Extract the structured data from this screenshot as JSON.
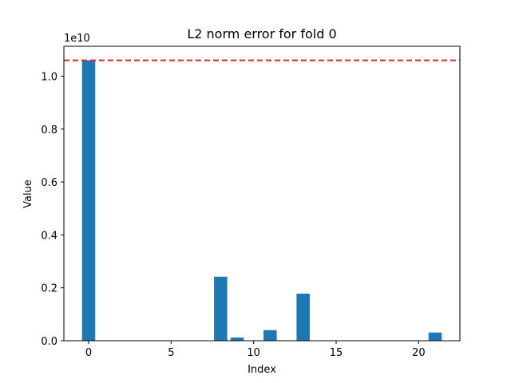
{
  "chart_data": {
    "type": "bar",
    "title": "L2 norm error for fold 0",
    "xlabel": "Index",
    "ylabel": "Value",
    "y_offset_label": "1e10",
    "x": [
      0,
      8,
      9,
      11,
      13,
      21
    ],
    "values": [
      10600000000,
      2420000000,
      120000000,
      400000000,
      1780000000,
      310000000
    ],
    "xlim": [
      -1.5,
      22.5
    ],
    "ylim": [
      0,
      11130000000
    ],
    "xticks": [
      0,
      5,
      10,
      15,
      20
    ],
    "xtick_labels": [
      "0",
      "5",
      "10",
      "15",
      "20"
    ],
    "yticks": [
      0,
      2000000000,
      4000000000,
      6000000000,
      8000000000,
      10000000000
    ],
    "ytick_labels": [
      "0.0",
      "0.2",
      "0.4",
      "0.6",
      "0.8",
      "1.0"
    ],
    "reference_line": {
      "value": 10600000000,
      "color": "#d62728",
      "style": "dashed"
    },
    "bar_color": "#1f77b4",
    "grid": false,
    "legend": "none"
  }
}
